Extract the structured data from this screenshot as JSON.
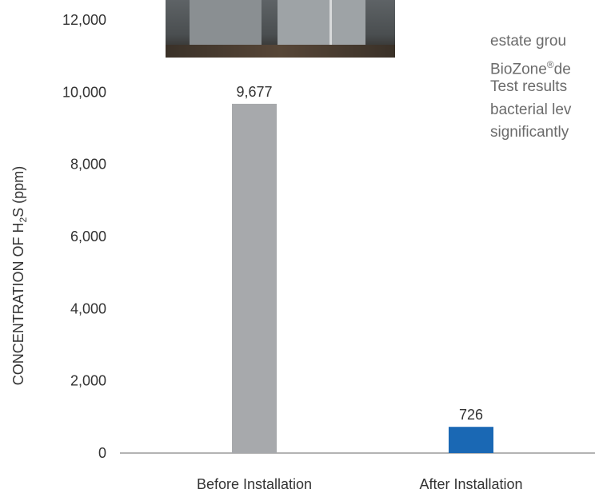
{
  "chart_data": {
    "type": "bar",
    "categories": [
      "Before Installation",
      "After Installation"
    ],
    "values": [
      9677,
      726
    ],
    "data_labels": [
      "9,677",
      "726"
    ],
    "bar_colors": [
      "#a7a9ac",
      "#1a68b4"
    ],
    "ylabel": "CONCENTRATION OF H2S (ppm)",
    "ylabel_parts": {
      "pre": "CONCENTRATION OF H",
      "sub": "2",
      "post": "S (ppm)"
    },
    "ylim": [
      0,
      12000
    ],
    "yticks": [
      {
        "value": 0,
        "label": "0"
      },
      {
        "value": 2000,
        "label": "2,000"
      },
      {
        "value": 4000,
        "label": "4,000"
      },
      {
        "value": 6000,
        "label": "6,000"
      },
      {
        "value": 8000,
        "label": "8,000"
      },
      {
        "value": 10000,
        "label": "10,000"
      },
      {
        "value": 12000,
        "label": "12,000"
      }
    ],
    "grid": false
  },
  "side_text": {
    "line1": "estate grou",
    "line2_pre": "BioZone",
    "line2_sup": "®",
    "line2_post": "de",
    "line3": "Test results",
    "line4": "bacterial lev",
    "line5": "significantly"
  },
  "photo": {
    "icon": "hallway-photo"
  }
}
